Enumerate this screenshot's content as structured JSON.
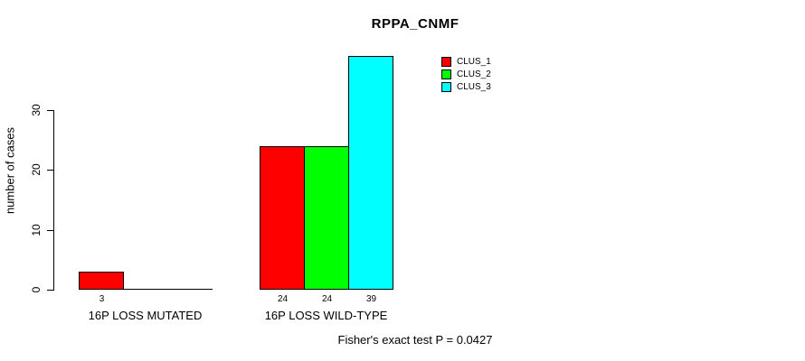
{
  "title": "RPPA_CNMF",
  "chart_data": {
    "type": "bar",
    "title": "RPPA_CNMF",
    "xlabel": "",
    "ylabel": "number of cases",
    "ylim": [
      0,
      30
    ],
    "yticks": [
      0,
      10,
      20,
      30
    ],
    "grid": false,
    "legend_position": "top-right",
    "categories": [
      "16P LOSS MUTATED",
      "16P LOSS WILD-TYPE"
    ],
    "series": [
      {
        "name": "CLUS_1",
        "color": "#FF0000",
        "values": [
          3,
          24
        ]
      },
      {
        "name": "CLUS_2",
        "color": "#00FF00",
        "values": [
          0,
          24
        ]
      },
      {
        "name": "CLUS_3",
        "color": "#00FFFF",
        "values": [
          0,
          39
        ]
      }
    ],
    "bar_value_labels": [
      [
        "3",
        "",
        ""
      ],
      [
        "24",
        "24",
        "39"
      ]
    ]
  },
  "footer": {
    "note": "Fisher's exact test P = 0.0427"
  },
  "colors": {
    "axis": "#000000",
    "background": "#FFFFFF",
    "clus_1": "#FF0000",
    "clus_2": "#00FF00",
    "clus_3": "#00FFFF"
  }
}
